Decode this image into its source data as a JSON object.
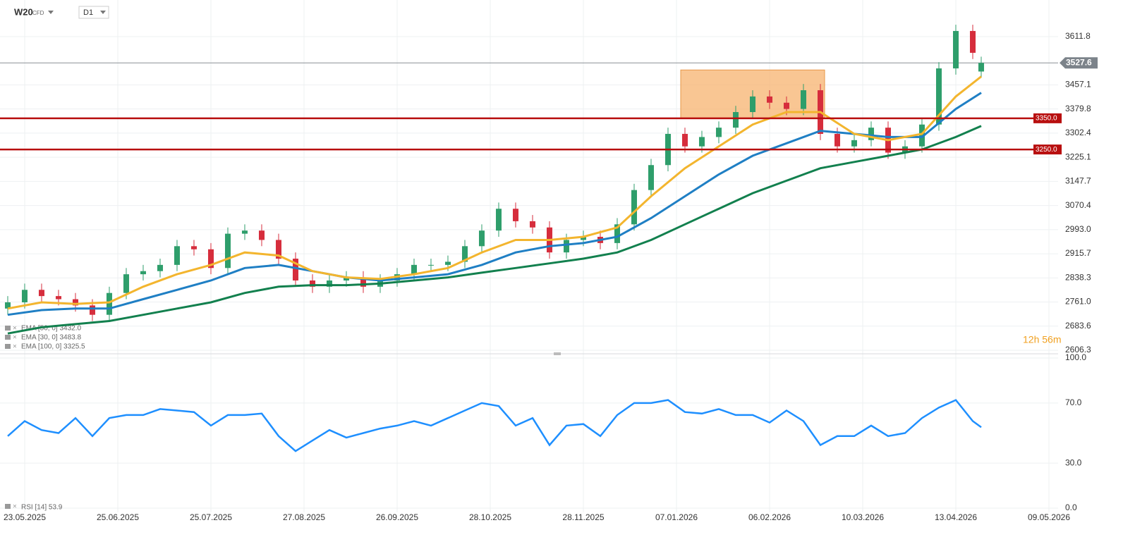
{
  "chart_data": [
    {
      "type": "candlestick",
      "symbol": "W20",
      "instrument_type": "CFD",
      "timeframe": "D1",
      "up_color": "#2e9e6b",
      "down_color": "#d62d3c",
      "x": [
        -4,
        0,
        4,
        8,
        12,
        16,
        20,
        24,
        28,
        32,
        36,
        40,
        44,
        48,
        52,
        56,
        60,
        64,
        68,
        72,
        76,
        80,
        84,
        88,
        92,
        96,
        100,
        104,
        108,
        112,
        116,
        120,
        124,
        128,
        132,
        136,
        140,
        144,
        148,
        152,
        156,
        160,
        164,
        168,
        172,
        176,
        180,
        184,
        188,
        192,
        196,
        200,
        204,
        208,
        212,
        216,
        220,
        224,
        226
      ],
      "open": [
        2740,
        2760,
        2800,
        2780,
        2770,
        2750,
        2720,
        2790,
        2850,
        2860,
        2880,
        2940,
        2930,
        2870,
        2980,
        2990,
        2960,
        2900,
        2830,
        2810,
        2830,
        2840,
        2810,
        2830,
        2850,
        2880,
        2880,
        2890,
        2940,
        2990,
        3060,
        3020,
        3000,
        2920,
        2960,
        2970,
        2950,
        3010,
        3120,
        3200,
        3300,
        3260,
        3290,
        3320,
        3370,
        3420,
        3400,
        3380,
        3440,
        3300,
        3260,
        3280,
        3320,
        3240,
        3260,
        3330,
        3510,
        3630,
        3500
      ],
      "high": [
        2780,
        2820,
        2820,
        2800,
        2790,
        2770,
        2810,
        2870,
        2880,
        2900,
        2960,
        2960,
        2950,
        3000,
        3010,
        3010,
        2980,
        2920,
        2850,
        2850,
        2860,
        2860,
        2850,
        2870,
        2900,
        2900,
        2910,
        2960,
        3010,
        3080,
        3080,
        3040,
        3020,
        2980,
        2990,
        2990,
        3030,
        3140,
        3220,
        3320,
        3320,
        3310,
        3340,
        3390,
        3440,
        3440,
        3420,
        3460,
        3460,
        3320,
        3300,
        3340,
        3340,
        3280,
        3350,
        3530,
        3650,
        3650,
        3547.6
      ],
      "low": [
        2720,
        2740,
        2760,
        2750,
        2730,
        2700,
        2700,
        2770,
        2830,
        2840,
        2860,
        2910,
        2850,
        2850,
        2960,
        2940,
        2880,
        2810,
        2790,
        2790,
        2810,
        2790,
        2790,
        2810,
        2830,
        2860,
        2860,
        2870,
        2920,
        2970,
        3000,
        2980,
        2900,
        2900,
        2940,
        2930,
        2930,
        2990,
        3100,
        3180,
        3240,
        3240,
        3270,
        3300,
        3350,
        3380,
        3360,
        3360,
        3280,
        3240,
        3240,
        3260,
        3220,
        3220,
        3240,
        3310,
        3490,
        3540,
        3480
      ],
      "close": [
        2760,
        2800,
        2780,
        2770,
        2750,
        2720,
        2790,
        2850,
        2860,
        2880,
        2940,
        2930,
        2870,
        2980,
        2990,
        2960,
        2900,
        2830,
        2810,
        2830,
        2840,
        2810,
        2830,
        2850,
        2880,
        2880,
        2890,
        2940,
        2990,
        3060,
        3020,
        3000,
        2920,
        2960,
        2970,
        2950,
        3010,
        3120,
        3200,
        3300,
        3260,
        3290,
        3320,
        3370,
        3420,
        3400,
        3380,
        3440,
        3300,
        3260,
        3280,
        3320,
        3240,
        3260,
        3330,
        3510,
        3630,
        3560,
        3527.6
      ],
      "xlim": [
        -5.83,
        244.17
      ],
      "xticks": [
        {
          "value": 0,
          "label": "23.05.2025"
        },
        {
          "value": 22,
          "label": "25.06.2025"
        },
        {
          "value": 44,
          "label": "25.07.2025"
        },
        {
          "value": 66,
          "label": "27.08.2025"
        },
        {
          "value": 88,
          "label": "26.09.2025"
        },
        {
          "value": 110,
          "label": "28.10.2025"
        },
        {
          "value": 132,
          "label": "28.11.2025"
        },
        {
          "value": 154,
          "label": "07.01.2026"
        },
        {
          "value": 176,
          "label": "06.02.2026"
        },
        {
          "value": 198,
          "label": "10.03.2026"
        },
        {
          "value": 220,
          "label": "13.04.2026"
        },
        {
          "value": 242,
          "label": "09.05.2026"
        }
      ],
      "ylim": [
        2599.5,
        3729.3
      ],
      "yticks": [
        3611.8,
        3457.1,
        3379.8,
        3302.4,
        3225.1,
        3147.7,
        3070.4,
        {
          "value": 2993,
          "label": "2993.0"
        },
        2915.7,
        2838.3,
        {
          "value": 2761,
          "label": "2761.0"
        },
        2683.6,
        2606.3
      ],
      "grid": true,
      "lines": {
        "x": [
          -4,
          4,
          12,
          20,
          28,
          36,
          44,
          52,
          60,
          68,
          76,
          84,
          92,
          100,
          108,
          116,
          124,
          132,
          140,
          148,
          156,
          164,
          172,
          180,
          188,
          196,
          204,
          212,
          220,
          226
        ],
        "series": [
          {
            "name": "EMA [50, 0] 3432.0",
            "color": "#1f7fc4",
            "values": [
              2720,
              2735,
              2740,
              2740,
              2770,
              2800,
              2830,
              2870,
              2880,
              2860,
              2840,
              2830,
              2840,
              2850,
              2880,
              2920,
              2940,
              2950,
              2970,
              3030,
              3100,
              3170,
              3230,
              3270,
              3310,
              3300,
              3290,
              3290,
              3380,
              3432
            ]
          },
          {
            "name": "EMA [30, 0] 3483.8",
            "color": "#f3b52e",
            "values": [
              2740,
              2760,
              2755,
              2760,
              2810,
              2850,
              2880,
              2920,
              2910,
              2860,
              2840,
              2835,
              2850,
              2870,
              2920,
              2960,
              2960,
              2970,
              3000,
              3100,
              3190,
              3260,
              3330,
              3370,
              3370,
              3300,
              3280,
              3300,
              3420,
              3483.8
            ]
          },
          {
            "name": "EMA [100, 0] 3325.5",
            "color": "#12804e",
            "values": [
              2660,
              2680,
              2690,
              2700,
              2720,
              2740,
              2760,
              2790,
              2810,
              2815,
              2815,
              2820,
              2830,
              2840,
              2855,
              2870,
              2885,
              2900,
              2920,
              2960,
              3010,
              3060,
              3110,
              3150,
              3190,
              3210,
              3230,
              3250,
              3290,
              3325.5
            ]
          }
        ]
      },
      "levels": [
        {
          "value": 3350,
          "label": "3350.0"
        },
        {
          "value": 3250,
          "label": "3250.0"
        }
      ],
      "level_color": "#b80f0f",
      "last_price": 3527.6,
      "zone": {
        "x": [
          155,
          189
        ],
        "y": [
          3350,
          3505
        ],
        "color": "#f7b36f"
      },
      "countdown": "12h 56m"
    },
    {
      "type": "line",
      "x": [
        -4,
        0,
        4,
        8,
        12,
        16,
        20,
        24,
        28,
        32,
        36,
        40,
        44,
        48,
        52,
        56,
        60,
        64,
        68,
        72,
        76,
        80,
        84,
        88,
        92,
        96,
        100,
        104,
        108,
        112,
        116,
        120,
        124,
        128,
        132,
        136,
        140,
        144,
        148,
        152,
        156,
        160,
        164,
        168,
        172,
        176,
        180,
        184,
        188,
        192,
        196,
        200,
        204,
        208,
        212,
        216,
        220,
        224,
        226
      ],
      "series": [
        {
          "name": "RSI [14] 53.9",
          "color": "#1e8fff",
          "values": [
            48,
            58,
            52,
            50,
            60,
            48,
            60,
            62,
            62,
            66,
            65,
            64,
            55,
            62,
            62,
            63,
            48,
            38,
            45,
            52,
            47,
            50,
            53,
            55,
            58,
            55,
            60,
            65,
            70,
            68,
            55,
            60,
            42,
            55,
            56,
            48,
            62,
            70,
            70,
            72,
            64,
            63,
            66,
            62,
            62,
            57,
            65,
            58,
            42,
            48,
            48,
            55,
            48,
            50,
            60,
            67,
            72,
            58,
            53.9
          ]
        }
      ],
      "xlim": [
        -5.83,
        244.17
      ],
      "ylim": [
        0,
        100
      ],
      "yticks": [
        {
          "value": 0,
          "label": "0.0"
        },
        {
          "value": 30,
          "label": "30.0"
        },
        {
          "value": 70,
          "label": "70.0"
        },
        {
          "value": 100,
          "label": "100.0"
        }
      ]
    }
  ]
}
